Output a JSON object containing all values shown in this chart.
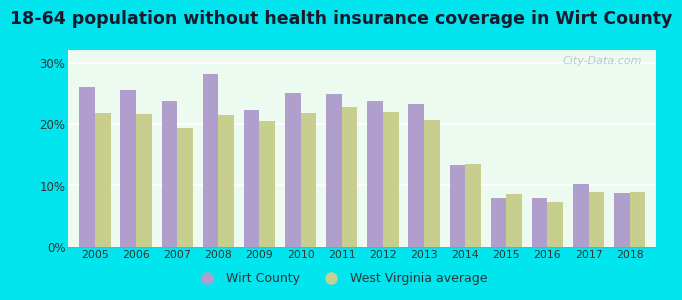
{
  "title": "18-64 population without health insurance coverage in Wirt County",
  "years": [
    2005,
    2006,
    2007,
    2008,
    2009,
    2010,
    2011,
    2012,
    2013,
    2014,
    2015,
    2016,
    2017,
    2018
  ],
  "wirt_county": [
    26.0,
    25.5,
    23.8,
    28.2,
    22.3,
    25.0,
    24.8,
    23.8,
    23.3,
    13.3,
    8.0,
    8.0,
    10.2,
    8.8
  ],
  "wv_average": [
    21.7,
    21.6,
    19.4,
    21.5,
    20.5,
    21.7,
    22.8,
    21.9,
    20.6,
    13.4,
    8.6,
    7.3,
    8.9,
    8.9
  ],
  "wirt_color": "#b09fcc",
  "wv_color": "#c8cf8e",
  "background_color": "#edfaf0",
  "outer_background": "#00e5ee",
  "yticks": [
    0,
    10,
    20,
    30
  ],
  "ytick_labels": [
    "0%",
    "10%",
    "20%",
    "30%"
  ],
  "legend_wirt": "Wirt County",
  "legend_wv": "West Virginia average",
  "watermark": "City-Data.com",
  "bar_width": 0.38,
  "title_fontsize": 12.5,
  "ylim": [
    0,
    32
  ]
}
